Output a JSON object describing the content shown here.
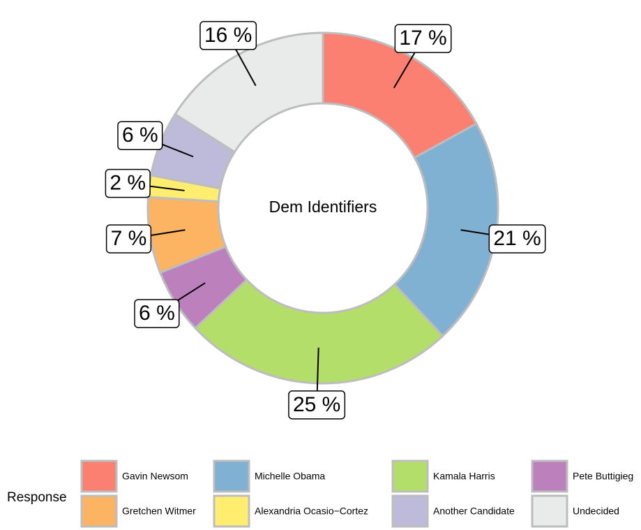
{
  "chart_data": {
    "type": "donut",
    "title": "Dem Identifiers",
    "legend_title": "Response",
    "categories": [
      "Gavin Newsom",
      "Michelle Obama",
      "Kamala Harris",
      "Pete Buttigieg",
      "Gretchen Witmer",
      "Alexandria Ocasio−Cortez",
      "Another Candidate",
      "Undecided"
    ],
    "values": [
      17,
      21,
      25,
      6,
      7,
      2,
      6,
      16
    ],
    "value_labels": [
      "17 %",
      "21 %",
      "25 %",
      "6 %",
      "7 %",
      "2 %",
      "6 %",
      "16 %"
    ],
    "colors": [
      "#fb8072",
      "#80b1d3",
      "#b3de69",
      "#bc80bd",
      "#fdb462",
      "#ffed6f",
      "#bebada",
      "#e9ebea"
    ]
  }
}
